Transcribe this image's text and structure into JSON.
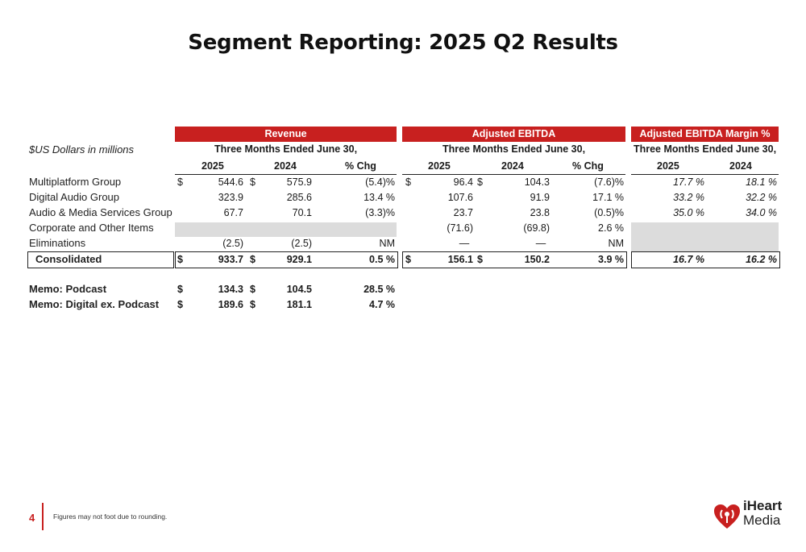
{
  "title": "Segment Reporting: 2025 Q2 Results",
  "units_label": "$US Dollars in millions",
  "groups": {
    "revenue": "Revenue",
    "ebitda": "Adjusted EBITDA",
    "margin": "Adjusted EBITDA Margin %"
  },
  "period_label": "Three Months Ended June 30,",
  "cols": {
    "y2025": "2025",
    "y2024": "2024",
    "chg": "% Chg"
  },
  "rows": [
    {
      "label": "Multiplatform Group",
      "rev25": "544.6",
      "rev24": "575.9",
      "revchg": "(5.4)%",
      "eb25": "96.4",
      "eb24": "104.3",
      "ebchg": "(7.6)%",
      "m25": "17.7 %",
      "m24": "18.1 %"
    },
    {
      "label": "Digital Audio Group",
      "rev25": "323.9",
      "rev24": "285.6",
      "revchg": "13.4 %",
      "eb25": "107.6",
      "eb24": "91.9",
      "ebchg": "17.1 %",
      "m25": "33.2 %",
      "m24": "32.2 %"
    },
    {
      "label": "Audio & Media Services Group",
      "rev25": "67.7",
      "rev24": "70.1",
      "revchg": "(3.3)%",
      "eb25": "23.7",
      "eb24": "23.8",
      "ebchg": "(0.5)%",
      "m25": "35.0 %",
      "m24": "34.0 %"
    },
    {
      "label": "Corporate and Other Items",
      "rev25": "",
      "rev24": "",
      "revchg": "",
      "eb25": "(71.6)",
      "eb24": "(69.8)",
      "ebchg": "2.6 %",
      "m25": "",
      "m24": ""
    },
    {
      "label": "Eliminations",
      "rev25": "(2.5)",
      "rev24": "(2.5)",
      "revchg": "NM",
      "eb25": "—",
      "eb24": "—",
      "ebchg": "NM",
      "m25": "",
      "m24": ""
    }
  ],
  "consolidated": {
    "label": "Consolidated",
    "rev25": "933.7",
    "rev24": "929.1",
    "revchg": "0.5 %",
    "eb25": "156.1",
    "eb24": "150.2",
    "ebchg": "3.9 %",
    "m25": "16.7 %",
    "m24": "16.2 %"
  },
  "memos": [
    {
      "label": "Memo: Podcast",
      "rev25": "134.3",
      "rev24": "104.5",
      "revchg": "28.5 %"
    },
    {
      "label": "Memo: Digital ex. Podcast",
      "rev25": "189.6",
      "rev24": "181.1",
      "revchg": "4.7 %"
    }
  ],
  "currency_symbol": "$",
  "footer": {
    "page_number": "4",
    "note": "Figures may not foot due to rounding."
  },
  "logo": {
    "line1": "iHeart",
    "line2": "Media",
    "icon": "iheart-logo-icon"
  },
  "colors": {
    "accent": "#c8201f",
    "shade": "#dcdcdc"
  }
}
